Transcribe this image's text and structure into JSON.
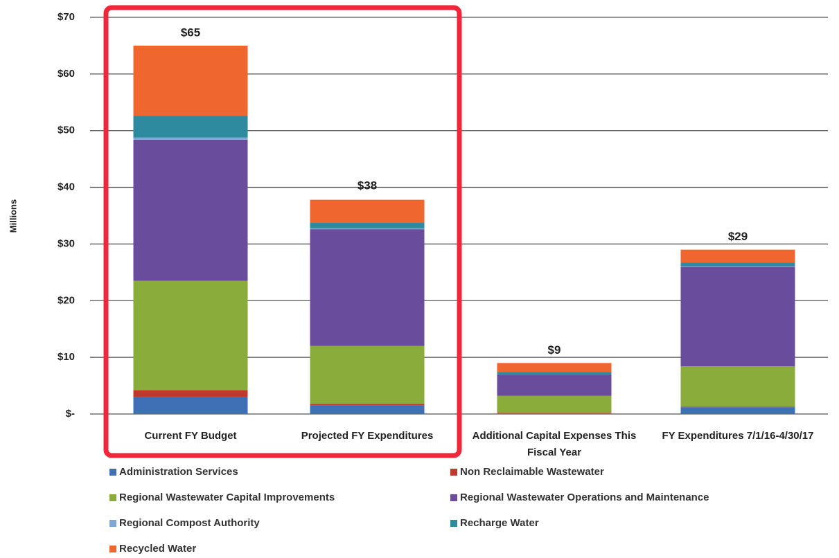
{
  "chart_data": {
    "type": "stacked_bar",
    "y_label": "Millions",
    "categories": [
      "Current FY Budget",
      "Projected FY Expenditures",
      "Additional Capital Expenses This Fiscal Year",
      "FY Expenditures 7/1/16-4/30/17"
    ],
    "series": [
      {
        "name": "Administration Services",
        "color": "#3f6fb5",
        "values": [
          3,
          1.5,
          0.1,
          1.2
        ]
      },
      {
        "name": "Non Reclaimable Wastewater",
        "color": "#c0392b",
        "values": [
          1.2,
          0.3,
          0.1,
          0.1
        ]
      },
      {
        "name": "Regional Wastewater Capital Improvements",
        "color": "#8aac3a",
        "values": [
          19.3,
          10.2,
          3.0,
          7.1
        ]
      },
      {
        "name": "Regional Wastewater Operations and Maintenance",
        "color": "#6a4c9c",
        "values": [
          24.9,
          20.6,
          3.8,
          17.6
        ]
      },
      {
        "name": "Regional Compost Authority",
        "color": "#7fa7d6",
        "values": [
          0.4,
          0.2,
          0,
          0.1
        ]
      },
      {
        "name": "Recharge Water",
        "color": "#2e8a9e",
        "values": [
          3.8,
          1.0,
          0.4,
          0.6
        ]
      },
      {
        "name": "Recycled Water",
        "color": "#f0662f",
        "values": [
          12.4,
          4,
          1.6,
          2.3
        ]
      }
    ],
    "totals": [
      65,
      38,
      9,
      29
    ],
    "total_labels": [
      "$65",
      "$38",
      "$9",
      "$29"
    ],
    "ylim": [
      0,
      70
    ],
    "yticks": [
      {
        "value": 0,
        "label": "$-"
      },
      {
        "value": 10,
        "label": "$10"
      },
      {
        "value": 20,
        "label": "$20"
      },
      {
        "value": 30,
        "label": "$30"
      },
      {
        "value": 40,
        "label": "$40"
      },
      {
        "value": 50,
        "label": "$50"
      },
      {
        "value": 60,
        "label": "$60"
      },
      {
        "value": 70,
        "label": "$70"
      }
    ],
    "grid": true
  }
}
